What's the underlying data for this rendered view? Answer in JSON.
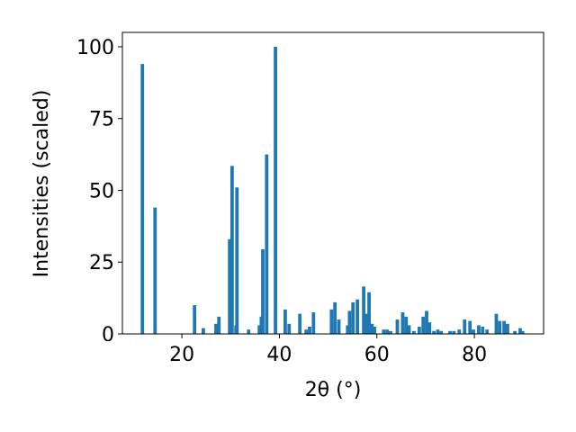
{
  "chart_data": {
    "type": "bar",
    "x_label": "2θ (°)",
    "y_label": "Intensities (scaled)",
    "color": "#1f77b4",
    "x": [
      11.9,
      14.5,
      22.6,
      24.4,
      27.0,
      27.6,
      29.8,
      30.3,
      31.1,
      31.3,
      33.7,
      35.9,
      36.3,
      36.6,
      37.4,
      39.2,
      41.2,
      42.0,
      44.2,
      45.5,
      46.2,
      47.0,
      50.7,
      51.4,
      52.2,
      54.0,
      54.4,
      55.1,
      56.0,
      57.3,
      57.9,
      58.4,
      59.0,
      59.5,
      61.4,
      62.1,
      62.8,
      64.2,
      65.3,
      66.0,
      66.6,
      67.6,
      68.7,
      69.5,
      70.2,
      70.8,
      71.7,
      72.5,
      73.2,
      75.0,
      75.8,
      76.9,
      78.0,
      79.1,
      79.8,
      80.9,
      81.7,
      82.6,
      84.5,
      85.2,
      86.1,
      86.8,
      88.3,
      89.4,
      89.9
    ],
    "values": [
      94,
      44,
      10,
      2,
      3.5,
      6,
      33,
      58.5,
      3,
      51,
      1.5,
      3,
      6,
      29.5,
      62.5,
      100,
      8.5,
      3.5,
      7,
      1.5,
      2.5,
      7.5,
      8.5,
      11,
      5,
      3,
      8,
      11,
      12,
      16.5,
      7,
      14.5,
      3.5,
      2.5,
      1.5,
      1.5,
      1,
      5,
      7.5,
      6,
      3,
      1,
      2.5,
      6,
      8,
      4,
      1,
      1.5,
      1,
      1,
      1,
      1.5,
      5,
      4.5,
      1.5,
      3,
      2.5,
      1.5,
      7,
      4.5,
      4.5,
      3.5,
      1,
      2,
      1
    ],
    "xlim": [
      7.8,
      94.2
    ],
    "ylim": [
      0,
      105
    ],
    "xticks": [
      20,
      40,
      60,
      80
    ],
    "yticks": [
      0,
      25,
      50,
      75,
      100
    ]
  }
}
